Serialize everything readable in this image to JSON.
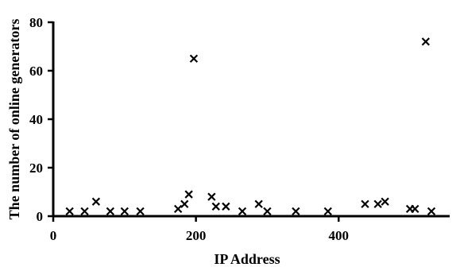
{
  "chart_data": {
    "type": "scatter",
    "title": "",
    "xlabel": "IP Address",
    "ylabel": "The number of online generators",
    "xlim": [
      0,
      540
    ],
    "ylim": [
      0,
      80
    ],
    "xticks": [
      0,
      200,
      400
    ],
    "yticks": [
      0,
      20,
      40,
      60,
      80
    ],
    "x_tick_labels": [
      "0",
      "200",
      "400"
    ],
    "y_tick_labels": [
      "0",
      "20",
      "40",
      "60",
      "80"
    ],
    "marker": "x",
    "color": "#000000",
    "grid": false,
    "legend": "none",
    "series": [
      {
        "points": [
          {
            "x": 23,
            "y": 2
          },
          {
            "x": 44,
            "y": 2
          },
          {
            "x": 60,
            "y": 6
          },
          {
            "x": 80,
            "y": 2
          },
          {
            "x": 100,
            "y": 2
          },
          {
            "x": 122,
            "y": 2
          },
          {
            "x": 175,
            "y": 3
          },
          {
            "x": 184,
            "y": 5
          },
          {
            "x": 190,
            "y": 9
          },
          {
            "x": 197,
            "y": 65
          },
          {
            "x": 222,
            "y": 8
          },
          {
            "x": 228,
            "y": 4
          },
          {
            "x": 242,
            "y": 4
          },
          {
            "x": 265,
            "y": 2
          },
          {
            "x": 288,
            "y": 5
          },
          {
            "x": 300,
            "y": 2
          },
          {
            "x": 340,
            "y": 2
          },
          {
            "x": 385,
            "y": 2
          },
          {
            "x": 437,
            "y": 5
          },
          {
            "x": 455,
            "y": 5
          },
          {
            "x": 465,
            "y": 6
          },
          {
            "x": 500,
            "y": 3
          },
          {
            "x": 507,
            "y": 3
          },
          {
            "x": 522,
            "y": 72
          },
          {
            "x": 530,
            "y": 2
          }
        ]
      }
    ]
  }
}
